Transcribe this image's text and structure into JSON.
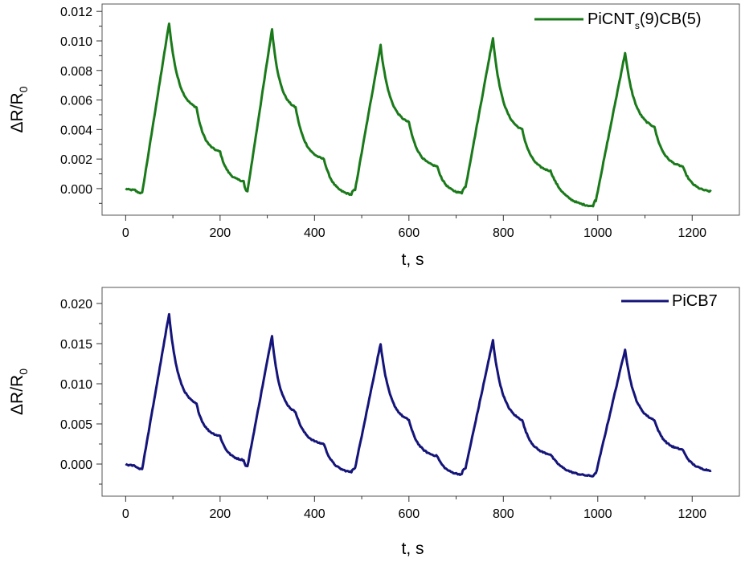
{
  "chart_data": [
    {
      "type": "line",
      "xlabel": "t, s",
      "ylabel": "ΔR/R0",
      "xlim": [
        -50,
        1300
      ],
      "ylim": [
        -0.0018,
        0.0125
      ],
      "xticks": [
        "0",
        "200",
        "400",
        "600",
        "800",
        "1000",
        "1200"
      ],
      "xtick_values": [
        0,
        200,
        400,
        600,
        800,
        1000,
        1200
      ],
      "yticks": [
        "0.000",
        "0.002",
        "0.004",
        "0.006",
        "0.008",
        "0.010",
        "0.012"
      ],
      "ytick_values": [
        0,
        0.002,
        0.004,
        0.006,
        0.008,
        0.01,
        0.012
      ],
      "legend_position": "top-right",
      "grid": false,
      "series": [
        {
          "name": "PiCNTs(9)CB(5)",
          "legend_main": "PiCNT",
          "legend_sub": "s",
          "legend_tail": "(9)CB(5)",
          "color": "#1a7a1a",
          "x": [
            0,
            20,
            35,
            92,
            150,
            200,
            250,
            258,
            310,
            360,
            420,
            478,
            486,
            540,
            600,
            660,
            712,
            720,
            778,
            840,
            900,
            990,
            996,
            1058,
            1120,
            1180,
            1240
          ],
          "y": [
            0.0,
            -0.0001,
            -0.0003,
            0.0112,
            0.0055,
            0.0025,
            0.0005,
            -0.0002,
            0.0108,
            0.0055,
            0.002,
            -0.0004,
            -0.0001,
            0.0097,
            0.0045,
            0.0015,
            -0.0003,
            0.0001,
            0.0102,
            0.004,
            0.0012,
            -0.0012,
            -0.0008,
            0.0092,
            0.0042,
            0.0015,
            -0.0002
          ]
        }
      ]
    },
    {
      "type": "line",
      "xlabel": "t, s",
      "ylabel": "ΔR/R0",
      "xlim": [
        -50,
        1300
      ],
      "ylim": [
        -0.004,
        0.022
      ],
      "xticks": [
        "0",
        "200",
        "400",
        "600",
        "800",
        "1000",
        "1200"
      ],
      "xtick_values": [
        0,
        200,
        400,
        600,
        800,
        1000,
        1200
      ],
      "yticks": [
        "0.000",
        "0.005",
        "0.010",
        "0.015",
        "0.020"
      ],
      "ytick_values": [
        0,
        0.005,
        0.01,
        0.015,
        0.02
      ],
      "legend_position": "top-right",
      "grid": false,
      "series": [
        {
          "name": "PiCB7",
          "legend_main": "PiCB7",
          "legend_sub": "",
          "legend_tail": "",
          "color": "#14147a",
          "x": [
            0,
            20,
            35,
            92,
            150,
            200,
            250,
            258,
            310,
            360,
            420,
            478,
            486,
            540,
            600,
            660,
            712,
            720,
            778,
            840,
            900,
            990,
            996,
            1058,
            1120,
            1180,
            1240
          ],
          "y": [
            0.0,
            -0.0002,
            -0.0006,
            0.0187,
            0.0075,
            0.0035,
            0.0005,
            -0.0003,
            0.016,
            0.0065,
            0.0025,
            -0.001,
            -0.0005,
            0.015,
            0.0055,
            0.001,
            -0.0013,
            -0.0005,
            0.0154,
            0.0055,
            0.0012,
            -0.0015,
            -0.0012,
            0.0143,
            0.0055,
            0.0018,
            -0.0008
          ]
        }
      ]
    }
  ]
}
